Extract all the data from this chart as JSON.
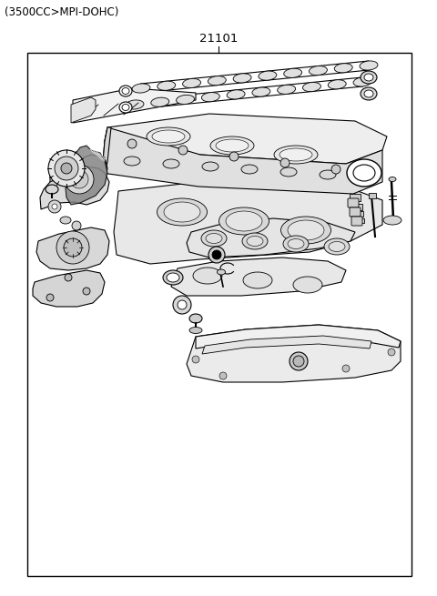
{
  "title_text": "(3500CC>MPI-DOHC)",
  "part_number": "21101",
  "bg_color": "#ffffff",
  "border_color": "#000000",
  "text_color": "#000000",
  "title_fontsize": 8.5,
  "part_num_fontsize": 9.5,
  "fig_width": 4.8,
  "fig_height": 6.55,
  "dpi": 100
}
